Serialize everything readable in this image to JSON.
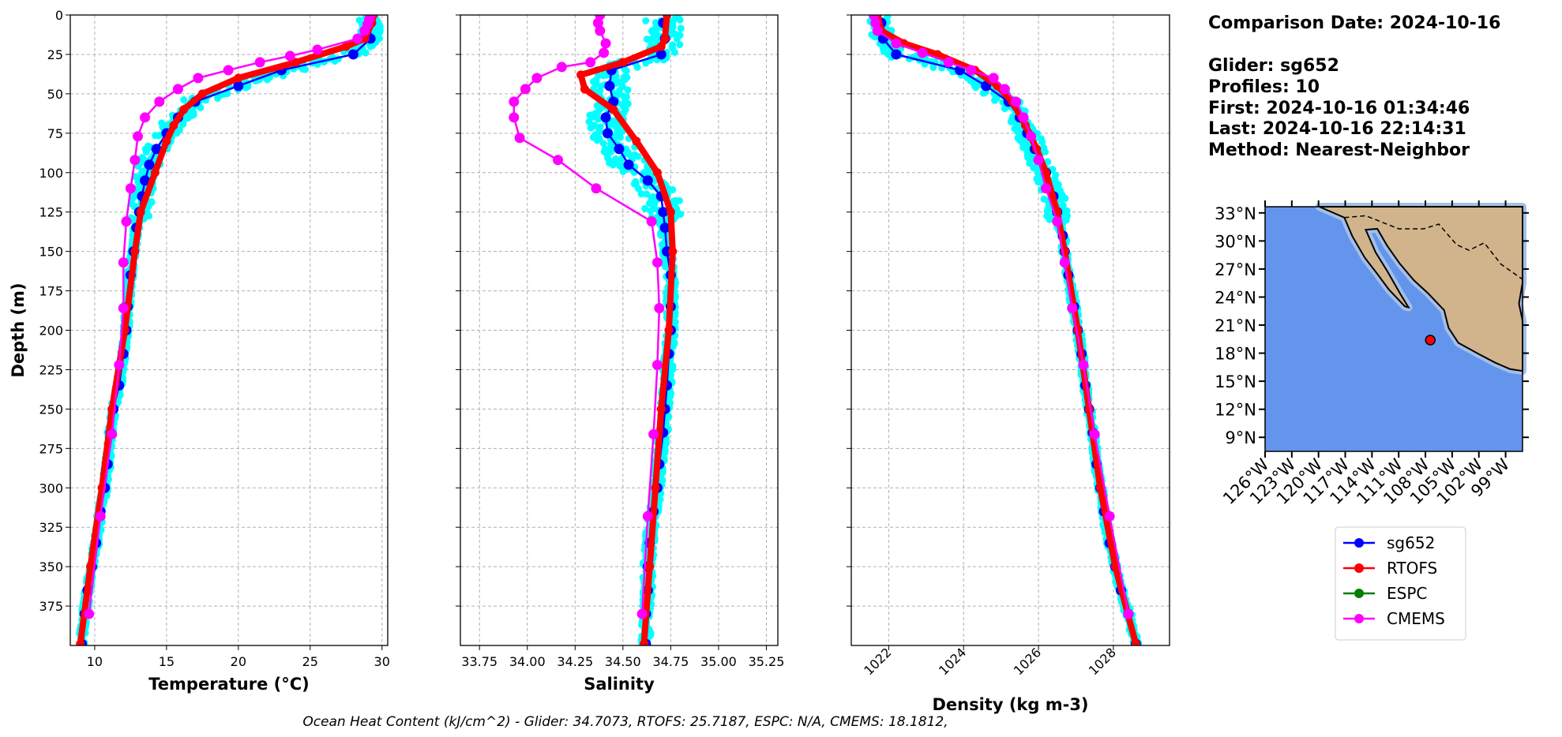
{
  "info": {
    "comparison_date": "Comparison Date: 2024-10-16",
    "glider": "Glider: sg652",
    "profiles": "Profiles: 10",
    "first": "First: 2024-10-16 01:34:46",
    "last": "Last: 2024-10-16 22:14:31",
    "method": "Method: Nearest-Neighbor"
  },
  "caption": "Ocean Heat Content (kJ/cm^2) - Glider: 34.7073,  RTOFS: 25.7187,  ESPC: N/A,  CMEMS: 18.1812,",
  "colors": {
    "sg652": "#0000ff",
    "RTOFS": "#ff0000",
    "ESPC": "#008000",
    "CMEMS": "#ff00ff",
    "raw": "#00ffff",
    "ocean": "#6495ed",
    "shelf": "#a4bfe6",
    "land": "#d2b48c"
  },
  "chart_data": [
    {
      "type": "line",
      "id": "temperature",
      "xlabel": "Temperature (°C)",
      "ylabel": "Depth (m)",
      "xlim": [
        8.3,
        30.4
      ],
      "ylim": [
        400,
        0
      ],
      "xticks": [
        "10",
        "15",
        "20",
        "25",
        "30"
      ],
      "yticks": [
        "0",
        "25",
        "50",
        "75",
        "100",
        "125",
        "150",
        "175",
        "200",
        "225",
        "250",
        "275",
        "300",
        "325",
        "350",
        "375"
      ],
      "grid": true,
      "series": [
        {
          "name": "sg652",
          "depth": [
            5,
            15,
            25,
            35,
            45,
            55,
            65,
            75,
            85,
            95,
            105,
            115,
            125,
            135,
            150,
            165,
            185,
            200,
            215,
            235,
            250,
            265,
            285,
            300,
            315,
            335,
            350,
            365,
            380,
            399
          ],
          "values": [
            29.2,
            29.2,
            28,
            23,
            20,
            17,
            15.8,
            15,
            14.3,
            13.8,
            13.5,
            13.3,
            13.1,
            12.9,
            12.7,
            12.5,
            12.3,
            12.2,
            12.0,
            11.7,
            11.3,
            11.1,
            10.9,
            10.7,
            10.4,
            10.1,
            9.8,
            9.5,
            9.3,
            9.1
          ]
        },
        {
          "name": "RTOFS",
          "depth": [
            0,
            5,
            15,
            20,
            30,
            40,
            50,
            60,
            70,
            80,
            100,
            125,
            150,
            200,
            250,
            300,
            350,
            399
          ],
          "values": [
            29.4,
            29.3,
            28.8,
            27.5,
            24,
            20,
            17.5,
            16.2,
            15.5,
            15,
            14.2,
            13.2,
            12.8,
            12.1,
            11.2,
            10.5,
            9.7,
            9.0
          ]
        },
        {
          "name": "CMEMS",
          "depth": [
            0,
            3,
            6,
            10,
            15,
            22,
            26,
            30,
            35,
            40,
            47,
            55,
            65,
            77,
            92,
            110,
            131,
            157,
            186,
            222,
            266,
            318,
            380
          ],
          "values": [
            29.2,
            29.1,
            29,
            28.8,
            28.3,
            25.5,
            23.6,
            21.5,
            19.3,
            17.2,
            15.8,
            14.5,
            13.5,
            13.0,
            12.8,
            12.5,
            12.2,
            12.0,
            12.0,
            11.7,
            11.2,
            10.4,
            9.6
          ]
        }
      ]
    },
    {
      "type": "line",
      "id": "salinity",
      "xlabel": "Salinity",
      "xlim": [
        33.65,
        35.31
      ],
      "ylim": [
        400,
        0
      ],
      "xticks": [
        "33.75",
        "34.00",
        "34.25",
        "34.50",
        "34.75",
        "35.00",
        "35.25"
      ],
      "grid": true,
      "series": [
        {
          "name": "sg652",
          "depth": [
            5,
            15,
            25,
            35,
            45,
            55,
            65,
            75,
            85,
            95,
            105,
            115,
            125,
            135,
            150,
            165,
            185,
            200,
            215,
            235,
            250,
            265,
            285,
            300,
            315,
            335,
            350,
            365,
            380,
            399
          ],
          "values": [
            34.71,
            34.72,
            34.7,
            34.44,
            34.43,
            34.45,
            34.41,
            34.42,
            34.48,
            34.53,
            34.63,
            34.7,
            34.71,
            34.72,
            34.73,
            34.75,
            34.75,
            34.75,
            34.74,
            34.73,
            34.72,
            34.71,
            34.69,
            34.68,
            34.66,
            34.64,
            34.63,
            34.63,
            34.62,
            34.62
          ]
        },
        {
          "name": "RTOFS",
          "depth": [
            0,
            15,
            20,
            30,
            38,
            47,
            60,
            80,
            100,
            125,
            150,
            200,
            250,
            300,
            350,
            399
          ],
          "values": [
            34.73,
            34.72,
            34.7,
            34.5,
            34.28,
            34.3,
            34.45,
            34.57,
            34.68,
            34.75,
            34.76,
            34.74,
            34.7,
            34.67,
            34.64,
            34.61
          ]
        },
        {
          "name": "CMEMS",
          "depth": [
            0,
            5,
            10,
            18,
            24,
            30,
            33,
            40,
            47,
            55,
            65,
            78,
            92,
            110,
            131,
            157,
            186,
            222,
            266,
            318,
            380
          ],
          "values": [
            34.38,
            34.37,
            34.38,
            34.41,
            34.4,
            34.33,
            34.18,
            34.05,
            33.99,
            33.93,
            33.93,
            33.96,
            34.16,
            34.36,
            34.65,
            34.68,
            34.69,
            34.68,
            34.66,
            34.63,
            34.6
          ]
        }
      ]
    },
    {
      "type": "line",
      "id": "density",
      "xlabel": "Density (kg m-3)",
      "xlim": [
        1021.0,
        1029.5
      ],
      "ylim": [
        400,
        0
      ],
      "xticks": [
        "1022",
        "1024",
        "1026",
        "1028"
      ],
      "grid": true,
      "series": [
        {
          "name": "sg652",
          "depth": [
            5,
            15,
            25,
            35,
            45,
            55,
            65,
            75,
            85,
            100,
            115,
            125,
            140,
            150,
            165,
            185,
            200,
            215,
            235,
            250,
            265,
            285,
            300,
            315,
            335,
            350,
            365,
            380,
            399
          ],
          "values": [
            1021.8,
            1021.85,
            1022.2,
            1023.9,
            1024.6,
            1025.2,
            1025.5,
            1025.7,
            1025.9,
            1026.2,
            1026.4,
            1026.5,
            1026.65,
            1026.7,
            1026.8,
            1026.95,
            1027.05,
            1027.15,
            1027.25,
            1027.35,
            1027.45,
            1027.55,
            1027.65,
            1027.75,
            1027.9,
            1028.05,
            1028.2,
            1028.4,
            1028.6
          ]
        },
        {
          "name": "RTOFS",
          "depth": [
            0,
            10,
            18,
            25,
            35,
            45,
            55,
            70,
            85,
            100,
            125,
            150,
            200,
            250,
            300,
            350,
            399
          ],
          "values": [
            1021.7,
            1021.8,
            1022.4,
            1023.3,
            1024.3,
            1024.9,
            1025.3,
            1025.65,
            1025.95,
            1026.2,
            1026.5,
            1026.7,
            1027.05,
            1027.35,
            1027.65,
            1028.05,
            1028.6
          ]
        },
        {
          "name": "CMEMS",
          "depth": [
            0,
            5,
            10,
            18,
            24,
            30,
            35,
            40,
            47,
            55,
            65,
            77,
            92,
            110,
            131,
            157,
            186,
            222,
            266,
            318,
            380
          ],
          "values": [
            1021.6,
            1021.65,
            1021.7,
            1022.2,
            1022.9,
            1023.6,
            1024.2,
            1024.8,
            1025.1,
            1025.4,
            1025.6,
            1025.8,
            1026.0,
            1026.2,
            1026.5,
            1026.7,
            1026.9,
            1027.2,
            1027.5,
            1027.9,
            1028.4
          ]
        }
      ]
    },
    {
      "type": "scatter",
      "id": "map",
      "lon_range": [
        -126,
        -97.1
      ],
      "lat_range": [
        7.5,
        33.66
      ],
      "xticks": [
        "126°W",
        "123°W",
        "120°W",
        "117°W",
        "114°W",
        "111°W",
        "108°W",
        "105°W",
        "102°W",
        "99°W"
      ],
      "yticks": [
        "33°N",
        "30°N",
        "27°N",
        "24°N",
        "21°N",
        "18°N",
        "15°N",
        "12°N",
        "9°N"
      ],
      "points": [
        {
          "name": "glider location",
          "lon": -107.45,
          "lat": 19.4
        }
      ]
    }
  ],
  "legend": [
    {
      "label": "sg652",
      "color": "#0000ff"
    },
    {
      "label": "RTOFS",
      "color": "#ff0000"
    },
    {
      "label": "ESPC",
      "color": "#008000"
    },
    {
      "label": "CMEMS",
      "color": "#ff00ff"
    }
  ]
}
